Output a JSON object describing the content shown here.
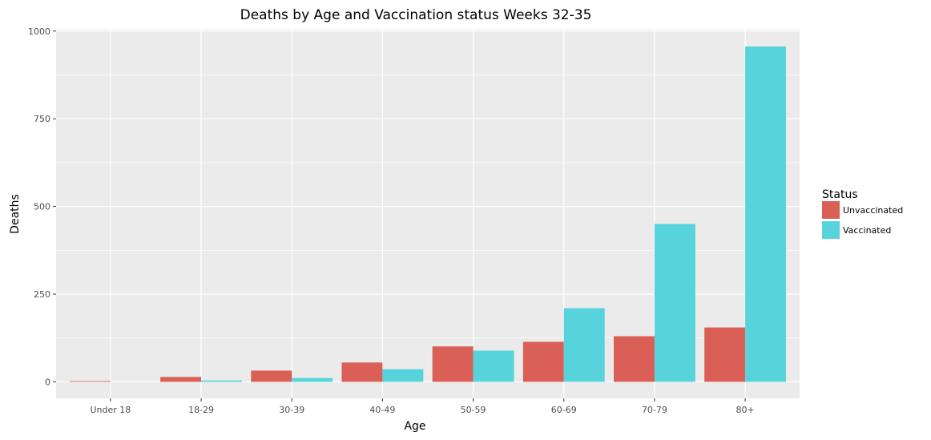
{
  "chart_data": {
    "type": "bar",
    "title": "Deaths by Age and Vaccination status Weeks 32-35",
    "xlabel": "Age",
    "ylabel": "Deaths",
    "categories": [
      "Under 18",
      "18-29",
      "30-39",
      "40-49",
      "50-59",
      "60-69",
      "70-79",
      "80+"
    ],
    "series": [
      {
        "name": "Unvaccinated",
        "color": "#d95f57",
        "values": [
          2,
          14,
          32,
          55,
          101,
          114,
          130,
          155
        ]
      },
      {
        "name": "Vaccinated",
        "color": "#56d3db",
        "values": [
          0,
          4,
          11,
          36,
          89,
          210,
          450,
          956
        ]
      }
    ],
    "ylim": [
      -47,
      1004
    ],
    "yticks": [
      0,
      250,
      500,
      750,
      1000
    ],
    "legend": {
      "title": "Status",
      "position": "right"
    },
    "grid": true
  }
}
